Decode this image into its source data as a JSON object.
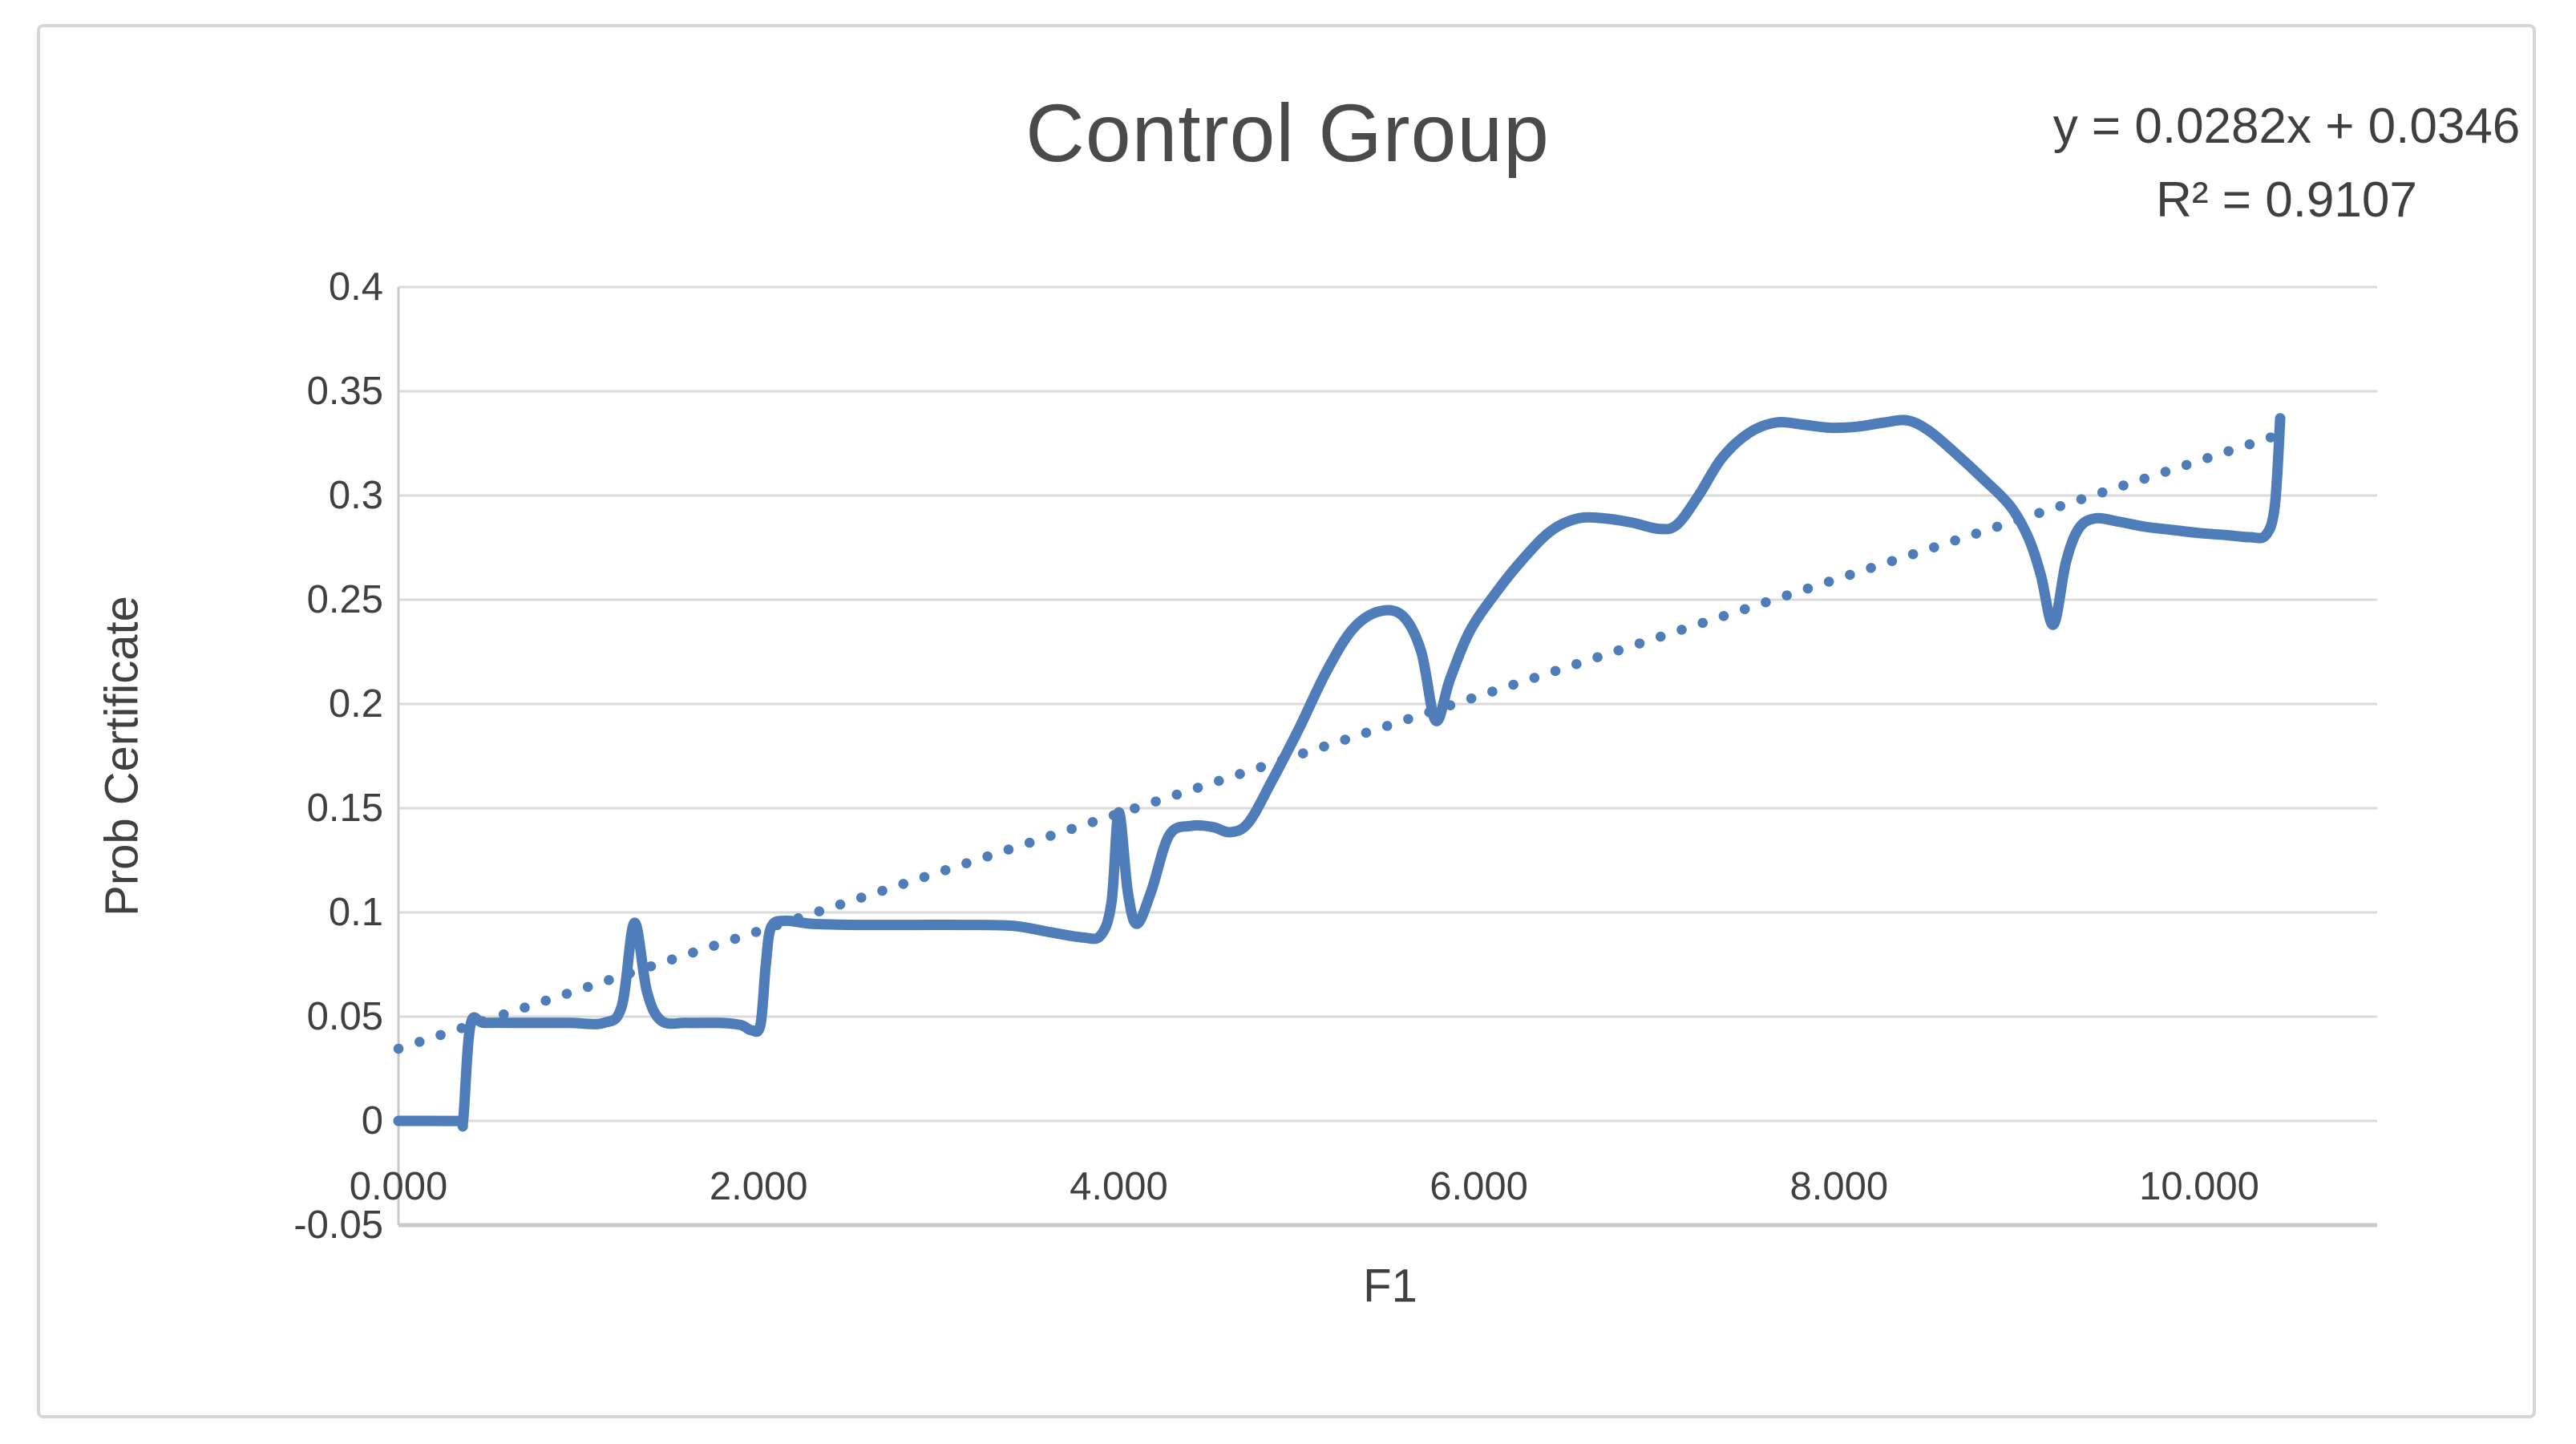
{
  "chart": {
    "title": "Control Group",
    "equation_line1": "y = 0.0282x + 0.0346",
    "equation_line2": "R² = 0.9107",
    "x_axis_title": "F1",
    "y_axis_title": "Prob Certificate"
  },
  "colors": {
    "series_blue": "#4E7DBA",
    "gridline": "#DADADA",
    "axis_line": "#C9C9C9",
    "text_dark": "#404040",
    "title_gray": "#4A4A4A",
    "frame_border": "#D6D6D6"
  },
  "chart_data": {
    "type": "line",
    "title": "Control Group",
    "xlabel": "F1",
    "ylabel": "Prob Certificate",
    "xlim": [
      0,
      11
    ],
    "ylim": [
      -0.05,
      0.4
    ],
    "grid": true,
    "legend_position": "none",
    "x_ticks": {
      "values": [
        0,
        2,
        4,
        6,
        8,
        10
      ],
      "labels": [
        "0.000",
        "2.000",
        "4.000",
        "6.000",
        "8.000",
        "10.000"
      ]
    },
    "y_ticks": {
      "values": [
        0.4,
        0.35,
        0.3,
        0.25,
        0.2,
        0.15,
        0.1,
        0.05,
        0,
        -0.05
      ],
      "labels": [
        "0.4",
        "0.35",
        "0.3",
        "0.25",
        "0.2",
        "0.15",
        "0.1",
        "0.05",
        "0",
        "-0.05"
      ]
    },
    "series": [
      {
        "name": "Prob Certificate vs F1",
        "style": "smooth_solid",
        "color": "#4E7DBA",
        "stroke_width": 13,
        "points": [
          [
            0.0,
            0.0
          ],
          [
            0.18,
            0.0
          ],
          [
            0.34,
            0.0
          ],
          [
            0.36,
            0.001
          ],
          [
            0.4,
            0.046
          ],
          [
            0.48,
            0.047
          ],
          [
            0.7,
            0.047
          ],
          [
            0.95,
            0.047
          ],
          [
            1.14,
            0.047
          ],
          [
            1.24,
            0.055
          ],
          [
            1.31,
            0.095
          ],
          [
            1.38,
            0.062
          ],
          [
            1.46,
            0.048
          ],
          [
            1.6,
            0.047
          ],
          [
            1.78,
            0.047
          ],
          [
            1.9,
            0.046
          ],
          [
            1.96,
            0.0435
          ],
          [
            2.01,
            0.046
          ],
          [
            2.04,
            0.075
          ],
          [
            2.07,
            0.093
          ],
          [
            2.15,
            0.096
          ],
          [
            2.3,
            0.0945
          ],
          [
            2.55,
            0.094
          ],
          [
            2.85,
            0.094
          ],
          [
            3.15,
            0.094
          ],
          [
            3.42,
            0.0935
          ],
          [
            3.62,
            0.0905
          ],
          [
            3.8,
            0.088
          ],
          [
            3.9,
            0.089
          ],
          [
            3.96,
            0.105
          ],
          [
            4.0,
            0.148
          ],
          [
            4.05,
            0.11
          ],
          [
            4.1,
            0.0945
          ],
          [
            4.18,
            0.11
          ],
          [
            4.28,
            0.137
          ],
          [
            4.4,
            0.1415
          ],
          [
            4.52,
            0.141
          ],
          [
            4.62,
            0.1385
          ],
          [
            4.72,
            0.143
          ],
          [
            4.85,
            0.163
          ],
          [
            5.0,
            0.188
          ],
          [
            5.15,
            0.215
          ],
          [
            5.3,
            0.236
          ],
          [
            5.45,
            0.2445
          ],
          [
            5.58,
            0.242
          ],
          [
            5.68,
            0.225
          ],
          [
            5.76,
            0.192
          ],
          [
            5.84,
            0.212
          ],
          [
            5.95,
            0.235
          ],
          [
            6.1,
            0.254
          ],
          [
            6.25,
            0.27
          ],
          [
            6.4,
            0.283
          ],
          [
            6.55,
            0.289
          ],
          [
            6.7,
            0.289
          ],
          [
            6.85,
            0.287
          ],
          [
            7.0,
            0.284
          ],
          [
            7.1,
            0.286
          ],
          [
            7.22,
            0.3
          ],
          [
            7.35,
            0.318
          ],
          [
            7.5,
            0.33
          ],
          [
            7.65,
            0.335
          ],
          [
            7.8,
            0.334
          ],
          [
            7.95,
            0.3325
          ],
          [
            8.1,
            0.333
          ],
          [
            8.25,
            0.335
          ],
          [
            8.38,
            0.336
          ],
          [
            8.5,
            0.331
          ],
          [
            8.65,
            0.32
          ],
          [
            8.8,
            0.308
          ],
          [
            8.95,
            0.295
          ],
          [
            9.05,
            0.28
          ],
          [
            9.12,
            0.262
          ],
          [
            9.19,
            0.238
          ],
          [
            9.26,
            0.268
          ],
          [
            9.33,
            0.284
          ],
          [
            9.42,
            0.289
          ],
          [
            9.55,
            0.2875
          ],
          [
            9.7,
            0.285
          ],
          [
            9.85,
            0.2835
          ],
          [
            10.0,
            0.282
          ],
          [
            10.15,
            0.281
          ],
          [
            10.28,
            0.28
          ],
          [
            10.37,
            0.281
          ],
          [
            10.42,
            0.295
          ],
          [
            10.45,
            0.337
          ]
        ]
      },
      {
        "name": "Linear trendline",
        "style": "dotted",
        "color": "#4E7DBA",
        "stroke_width": 12.5,
        "equation": "y = 0.0282x + 0.0346",
        "r_squared": 0.9107,
        "points": [
          [
            0.0,
            0.0346
          ],
          [
            10.42,
            0.3285
          ]
        ]
      }
    ]
  }
}
